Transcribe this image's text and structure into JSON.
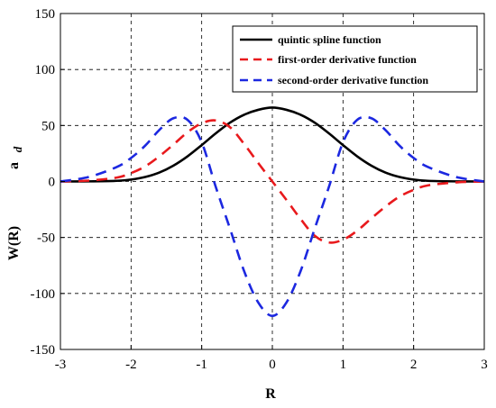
{
  "chart_data": {
    "type": "line",
    "title": "",
    "xlabel": "R",
    "ylabel": "W(R)",
    "ylabel_subscript": "a",
    "ylabel_subscript2": "d",
    "xlim": [
      -3,
      3
    ],
    "ylim": [
      -150,
      150
    ],
    "x_ticks": [
      -3,
      -2,
      -1,
      0,
      1,
      2,
      3
    ],
    "y_ticks": [
      -150,
      -100,
      -50,
      0,
      50,
      100,
      150
    ],
    "grid": "dashed",
    "legend_position": "top-right",
    "series": [
      {
        "name": "quintic spline function",
        "color": "#000000",
        "style": "solid",
        "x": [
          -3.0,
          -2.6,
          -2.2,
          -2.0,
          -1.8,
          -1.6,
          -1.4,
          -1.2,
          -1.0,
          -0.8,
          -0.6,
          -0.4,
          -0.2,
          0.0,
          0.2,
          0.4,
          0.6,
          0.8,
          1.0,
          1.2,
          1.4,
          1.6,
          1.8,
          2.0,
          2.2,
          2.6,
          3.0
        ],
        "y": [
          0,
          0.1,
          0.6,
          1.7,
          4.0,
          8.0,
          14.2,
          22.5,
          32.5,
          43.0,
          52.5,
          59.6,
          64.0,
          66.0,
          64.0,
          59.6,
          52.5,
          43.0,
          32.5,
          22.5,
          14.2,
          8.0,
          4.0,
          1.7,
          0.6,
          0.1,
          0
        ]
      },
      {
        "name": "first-order derivative function",
        "color": "#e8191c",
        "style": "dashed",
        "x": [
          -3.0,
          -2.6,
          -2.2,
          -2.0,
          -1.8,
          -1.6,
          -1.4,
          -1.2,
          -1.0,
          -0.8,
          -0.6,
          -0.4,
          -0.2,
          0.0,
          0.2,
          0.4,
          0.6,
          0.8,
          1.0,
          1.2,
          1.4,
          1.6,
          1.8,
          2.0,
          2.2,
          2.6,
          3.0
        ],
        "y": [
          0,
          0.8,
          3.5,
          7.5,
          13.5,
          22.5,
          33.0,
          44.0,
          52.0,
          54.5,
          48.5,
          33.5,
          16.5,
          0,
          -16.5,
          -33.5,
          -48.5,
          -54.5,
          -52.0,
          -44.0,
          -33.0,
          -22.5,
          -13.5,
          -7.5,
          -3.5,
          -0.8,
          0
        ]
      },
      {
        "name": "second-order derivative function",
        "color": "#1c28e0",
        "style": "dashed",
        "x": [
          -3.0,
          -2.6,
          -2.2,
          -2.0,
          -1.8,
          -1.6,
          -1.4,
          -1.2,
          -1.0,
          -0.8,
          -0.6,
          -0.4,
          -0.2,
          0.0,
          0.2,
          0.4,
          0.6,
          0.8,
          1.0,
          1.2,
          1.4,
          1.6,
          1.8,
          2.0,
          2.2,
          2.6,
          3.0
        ],
        "y": [
          0,
          4.0,
          13.0,
          21.0,
          32.0,
          46.0,
          56.5,
          55.0,
          35.0,
          -5.0,
          -42.0,
          -80.0,
          -108.0,
          -120.0,
          -108.0,
          -80.0,
          -42.0,
          -5.0,
          35.0,
          55.0,
          56.5,
          46.0,
          32.0,
          21.0,
          13.0,
          4.0,
          0
        ]
      }
    ]
  }
}
